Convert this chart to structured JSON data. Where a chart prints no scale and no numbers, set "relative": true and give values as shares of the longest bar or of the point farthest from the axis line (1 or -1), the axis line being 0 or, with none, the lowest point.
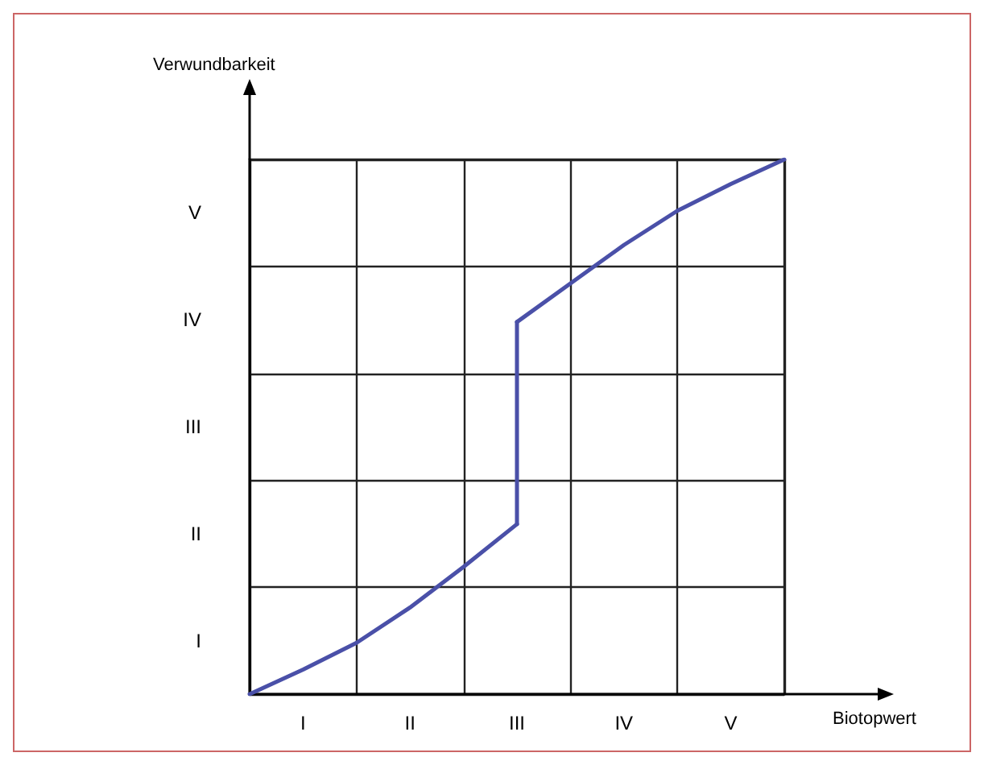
{
  "chart_data": {
    "type": "line",
    "relative": true,
    "xlabel": "Biotopwert",
    "ylabel": "Verwundbarkeit",
    "categories": [
      null,
      "I",
      null,
      "II",
      null,
      "III",
      null,
      "IV",
      null,
      "V",
      null
    ],
    "y_categories": [
      "V",
      "IV",
      "III",
      "II",
      "I"
    ],
    "series": [
      {
        "color": "#4a50a8",
        "values": [
          0,
          0.046,
          0.096,
          0.162,
          0.238,
          0.318,
          null,
          null,
          null,
          null,
          null
        ]
      },
      {
        "color": "#4a50a8",
        "x": [
          "III",
          "III"
        ],
        "values": [
          0.318,
          0.696
        ]
      },
      {
        "color": "#4a50a8",
        "values": [
          null,
          null,
          null,
          null,
          null,
          0.696,
          0.768,
          0.84,
          0.904,
          0.954,
          1
        ]
      }
    ],
    "grid": true,
    "marker": "none",
    "line_style": "solid"
  }
}
